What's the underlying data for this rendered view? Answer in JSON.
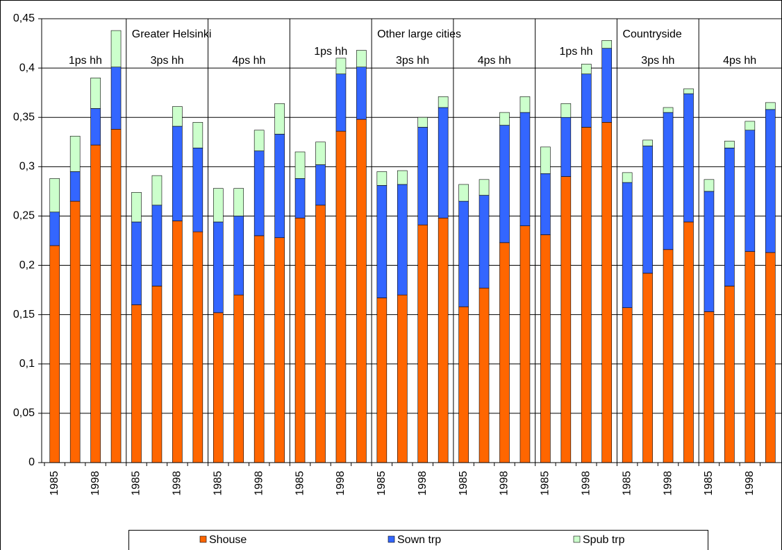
{
  "chart_data": {
    "type": "stacked_bar",
    "regions": [
      "Greater Helsinki",
      "Other large cities",
      "Countryside"
    ],
    "groups": [
      "1ps hh",
      "3ps hh",
      "4ps hh"
    ],
    "categories": [
      "1985",
      null,
      "1998",
      null,
      "1985",
      null,
      "1998",
      null,
      "1985",
      null,
      "1998",
      null,
      "1985",
      null,
      "1998",
      null,
      "1985",
      null,
      "1998",
      null,
      "1985",
      null,
      "1998",
      null,
      "1985",
      null,
      "1998",
      null,
      "1985",
      null,
      "1998",
      null,
      "1985",
      null,
      "1998",
      null
    ],
    "series": [
      {
        "name": "Shouse",
        "color": "#ff6600",
        "values": [
          0.22,
          0.265,
          0.322,
          0.338,
          0.16,
          0.179,
          0.245,
          0.234,
          0.152,
          0.17,
          0.23,
          0.228,
          0.248,
          0.261,
          0.336,
          0.348,
          0.167,
          0.17,
          0.241,
          0.248,
          0.158,
          0.177,
          0.223,
          0.24,
          0.231,
          0.29,
          0.34,
          0.345,
          0.157,
          0.192,
          0.216,
          0.244,
          0.153,
          0.179,
          0.214,
          0.213
        ]
      },
      {
        "name": "Sown trp",
        "color": "#3366ff",
        "values": [
          0.034,
          0.03,
          0.037,
          0.063,
          0.084,
          0.082,
          0.096,
          0.085,
          0.092,
          0.08,
          0.086,
          0.105,
          0.04,
          0.041,
          0.058,
          0.053,
          0.114,
          0.112,
          0.099,
          0.112,
          0.107,
          0.094,
          0.119,
          0.115,
          0.062,
          0.06,
          0.054,
          0.075,
          0.127,
          0.129,
          0.139,
          0.13,
          0.122,
          0.14,
          0.123,
          0.145
        ]
      },
      {
        "name": "Spub trp",
        "color": "#ccffcc",
        "values": [
          0.034,
          0.036,
          0.031,
          0.037,
          0.03,
          0.03,
          0.02,
          0.026,
          0.034,
          0.028,
          0.021,
          0.031,
          0.027,
          0.023,
          0.016,
          0.017,
          0.014,
          0.014,
          0.01,
          0.011,
          0.017,
          0.016,
          0.013,
          0.016,
          0.027,
          0.014,
          0.01,
          0.008,
          0.01,
          0.006,
          0.005,
          0.005,
          0.012,
          0.007,
          0.009,
          0.007
        ]
      }
    ],
    "ylim": [
      0,
      0.45
    ],
    "yticks": [
      0,
      {
        "value": 0.05,
        "label": "0,05"
      },
      {
        "value": 0.1,
        "label": "0,1"
      },
      {
        "value": 0.15,
        "label": "0,15"
      },
      {
        "value": 0.2,
        "label": "0,2"
      },
      {
        "value": 0.25,
        "label": "0,25"
      },
      {
        "value": 0.3,
        "label": "0,3"
      },
      {
        "value": 0.35,
        "label": "0,35"
      },
      {
        "value": 0.4,
        "label": "0,4"
      },
      {
        "value": 0.45,
        "label": "0,45"
      }
    ],
    "grid": true
  }
}
